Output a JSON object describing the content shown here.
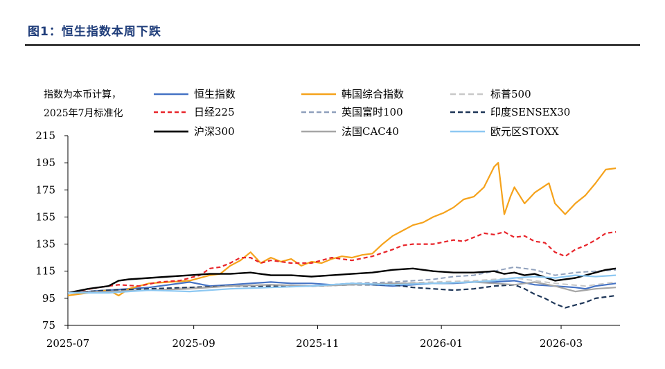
{
  "page": {
    "title": "图1：恒生指数本周下跌"
  },
  "chart_data": {
    "type": "line",
    "note_lines": [
      "指数为本币计算，",
      "2025年7月标准化"
    ],
    "ylim": [
      75,
      215
    ],
    "yticks": [
      215,
      195,
      175,
      155,
      135,
      115,
      95,
      75
    ],
    "xlim_days": [
      0,
      272
    ],
    "xticks": [
      {
        "label": "2025-07",
        "day": 0
      },
      {
        "label": "2025-09",
        "day": 62
      },
      {
        "label": "2025-11",
        "day": 123
      },
      {
        "label": "2026-01",
        "day": 184
      },
      {
        "label": "2026-03",
        "day": 243
      }
    ],
    "series": [
      {
        "name": "恒生指数",
        "color": "#4472c4",
        "dash": "solid",
        "width": 2.2,
        "x": [
          0,
          10,
          20,
          30,
          40,
          50,
          60,
          70,
          80,
          90,
          100,
          110,
          120,
          130,
          140,
          150,
          160,
          170,
          180,
          190,
          200,
          210,
          220,
          230,
          240,
          250,
          255,
          260,
          265,
          270
        ],
        "y": [
          99,
          100,
          101,
          102,
          103,
          105,
          107,
          104,
          105,
          106,
          107,
          106,
          106,
          105,
          106,
          105,
          104,
          105,
          106,
          106,
          107,
          107,
          108,
          105,
          104,
          103,
          102,
          104,
          105,
          106
        ]
      },
      {
        "name": "韩国综合指数",
        "color": "#f5a21b",
        "dash": "solid",
        "width": 2.2,
        "x": [
          0,
          10,
          20,
          25,
          30,
          40,
          50,
          60,
          70,
          75,
          80,
          85,
          90,
          95,
          100,
          105,
          110,
          115,
          120,
          125,
          130,
          135,
          140,
          145,
          150,
          155,
          160,
          165,
          170,
          175,
          180,
          185,
          190,
          195,
          200,
          205,
          210,
          212,
          215,
          218,
          220,
          225,
          230,
          235,
          237,
          240,
          245,
          250,
          255,
          260,
          265,
          270
        ],
        "y": [
          97,
          99,
          101,
          97,
          102,
          106,
          107,
          108,
          112,
          113,
          119,
          123,
          129,
          121,
          125,
          122,
          124,
          119,
          122,
          121,
          124,
          126,
          125,
          127,
          128,
          135,
          141,
          145,
          149,
          151,
          155,
          158,
          162,
          168,
          170,
          177,
          192,
          195,
          157,
          170,
          177,
          165,
          173,
          178,
          180,
          165,
          157,
          165,
          171,
          180,
          190,
          191
        ]
      },
      {
        "name": "标普500",
        "color": "#c8c8c8",
        "dash": "8,5",
        "width": 2,
        "x": [
          0,
          20,
          40,
          60,
          80,
          100,
          120,
          140,
          160,
          180,
          200,
          220,
          240,
          255,
          265,
          270
        ],
        "y": [
          99,
          100,
          101,
          103,
          104,
          105,
          104,
          105,
          106,
          107,
          108,
          110,
          106,
          104,
          106,
          107
        ]
      },
      {
        "name": "日经225",
        "color": "#e8242a",
        "dash": "6,4",
        "width": 2.2,
        "x": [
          0,
          15,
          25,
          35,
          45,
          55,
          60,
          65,
          70,
          75,
          80,
          85,
          90,
          95,
          100,
          110,
          120,
          130,
          140,
          150,
          160,
          165,
          170,
          180,
          190,
          195,
          200,
          205,
          210,
          215,
          220,
          225,
          230,
          235,
          240,
          245,
          250,
          255,
          260,
          265,
          270
        ],
        "y": [
          99,
          103,
          105,
          104,
          107,
          108,
          110,
          112,
          117,
          118,
          121,
          125,
          125,
          121,
          123,
          121,
          121,
          125,
          123,
          126,
          131,
          134,
          135,
          135,
          138,
          137,
          140,
          143,
          142,
          144,
          140,
          141,
          137,
          136,
          129,
          126,
          131,
          134,
          138,
          143,
          144
        ]
      },
      {
        "name": "英国富时100",
        "color": "#8fa0bc",
        "dash": "7,4",
        "width": 2,
        "x": [
          0,
          20,
          40,
          60,
          80,
          100,
          120,
          140,
          160,
          180,
          190,
          200,
          210,
          220,
          230,
          240,
          250,
          260,
          270
        ],
        "y": [
          99,
          101,
          102,
          103,
          104,
          105,
          104,
          106,
          107,
          109,
          111,
          112,
          115,
          118,
          116,
          112,
          114,
          115,
          116
        ]
      },
      {
        "name": "印度SENSEX30",
        "color": "#1d3557",
        "dash": "7,4",
        "width": 2.2,
        "x": [
          0,
          20,
          40,
          60,
          80,
          100,
          120,
          140,
          160,
          170,
          180,
          190,
          200,
          210,
          220,
          225,
          230,
          235,
          240,
          245,
          250,
          255,
          260,
          265,
          270
        ],
        "y": [
          99,
          101,
          102,
          103,
          104,
          104,
          104,
          105,
          105,
          103,
          102,
          101,
          102,
          104,
          105,
          102,
          98,
          95,
          91,
          88,
          90,
          92,
          95,
          96,
          97
        ]
      },
      {
        "name": "沪深300",
        "color": "#000000",
        "dash": "solid",
        "width": 2.4,
        "x": [
          0,
          10,
          20,
          25,
          30,
          40,
          50,
          60,
          70,
          80,
          90,
          100,
          110,
          120,
          130,
          140,
          150,
          160,
          170,
          180,
          190,
          200,
          210,
          215,
          220,
          225,
          230,
          240,
          250,
          255,
          260,
          265,
          270
        ],
        "y": [
          99,
          102,
          104,
          108,
          109,
          110,
          111,
          112,
          113,
          113,
          114,
          112,
          112,
          111,
          112,
          113,
          114,
          116,
          117,
          115,
          114,
          114,
          115,
          113,
          114,
          112,
          113,
          108,
          110,
          112,
          114,
          116,
          117
        ]
      },
      {
        "name": "法国CAC40",
        "color": "#a6a6a6",
        "dash": "solid",
        "width": 2.2,
        "x": [
          0,
          20,
          40,
          60,
          80,
          100,
          120,
          140,
          160,
          180,
          200,
          210,
          220,
          230,
          240,
          250,
          260,
          270
        ],
        "y": [
          99,
          100,
          101,
          102,
          104,
          105,
          104,
          105,
          106,
          106,
          107,
          106,
          105,
          107,
          104,
          100,
          102,
          103
        ]
      },
      {
        "name": "欧元区STOXX",
        "color": "#8dc8f2",
        "dash": "solid",
        "width": 2.2,
        "x": [
          0,
          20,
          40,
          60,
          80,
          100,
          120,
          140,
          160,
          180,
          200,
          210,
          220,
          230,
          240,
          250,
          260,
          270
        ],
        "y": [
          99,
          99,
          101,
          100,
          102,
          103,
          104,
          106,
          105,
          106,
          107,
          108,
          110,
          111,
          110,
          112,
          111,
          112
        ]
      }
    ]
  }
}
